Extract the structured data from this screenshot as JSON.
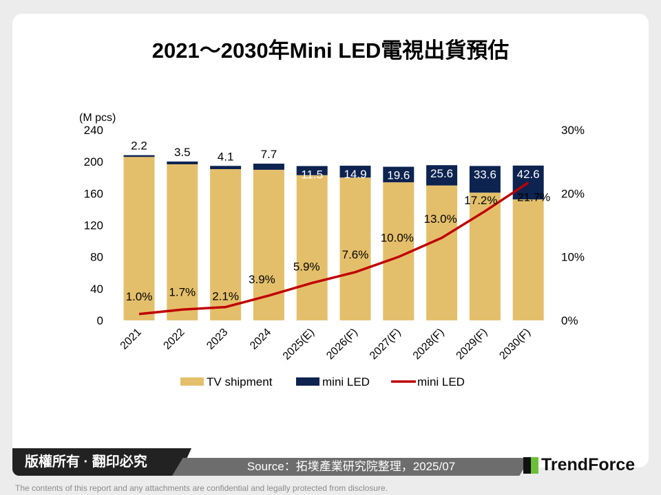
{
  "chart_data": {
    "type": "bar",
    "title": "2021～2030年Mini LED電視出貨預估",
    "ylabel": "(M pcs)",
    "ylim": [
      0,
      240
    ],
    "yticks": [
      "0",
      "40",
      "80",
      "120",
      "160",
      "200",
      "240"
    ],
    "y2lim": [
      0,
      30
    ],
    "y2ticks": [
      "0%",
      "10%",
      "20%",
      "30%"
    ],
    "categories": [
      "2021",
      "2022",
      "2023",
      "2024",
      "2025(E)",
      "2026(F)",
      "2027(F)",
      "2028(F)",
      "2029(F)",
      "2030(F)"
    ],
    "series": [
      {
        "name": "TV shipment",
        "type": "bar",
        "color": "#e4bf6b",
        "values": [
          206,
          196.7,
          190.6,
          189.8,
          183,
          180,
          174,
          170,
          161,
          152.5
        ]
      },
      {
        "name": "mini LED",
        "type": "bar",
        "color": "#0d2350",
        "values": [
          2.2,
          3.5,
          4.1,
          7.7,
          11.5,
          14.9,
          19.6,
          25.6,
          33.6,
          42.6
        ],
        "labels": [
          "2.2",
          "3.5",
          "4.1",
          "7.7",
          "11.5",
          "14.9",
          "19.6",
          "25.6",
          "33.6",
          "42.6"
        ]
      },
      {
        "name": "mini LED",
        "type": "line",
        "axis": "right",
        "color": "#c00000",
        "values": [
          1.0,
          1.7,
          2.1,
          3.9,
          5.9,
          7.6,
          10.0,
          13.0,
          17.2,
          21.7
        ],
        "labels": [
          "1.0%",
          "1.7%",
          "2.1%",
          "3.9%",
          "5.9%",
          "7.6%",
          "10.0%",
          "13.0%",
          "17.2%",
          "21.7%"
        ]
      }
    ],
    "legend": "bottom",
    "grid": false
  },
  "footer": {
    "copyright": "版權所有 · 翻印必究",
    "source": "Source：拓墣產業研究院整理，2025/07",
    "logo": "TrendForce",
    "disclaimer": "The contents of this report and any attachments are confidential and legally protected from disclosure."
  }
}
